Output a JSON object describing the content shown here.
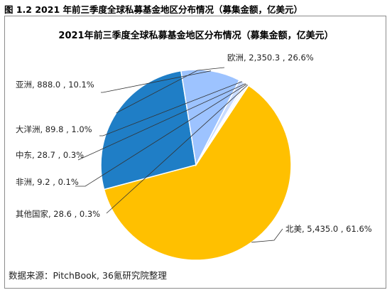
{
  "figure_caption": "图 1.2 2021 年前三季度全球私募基金地区分布情况（募集金额，亿美元）",
  "source": "数据来源：PitchBook, 36氪研究院整理",
  "colors": {
    "north_america": "#FFC000",
    "europe": "#1F7EC6",
    "asia": "#9DC3FF",
    "oceania": "#C9DCFF",
    "middle_east": "#DCE8FF",
    "africa": "#E9F0FF",
    "other": "#F3F7FF"
  },
  "chart_data": {
    "type": "pie",
    "title": "2021年前三季度全球私募基金地区分布情况（募集金额，亿美元）",
    "slices": [
      {
        "name": "北美",
        "value": 5435.0,
        "percent": 61.6,
        "label": "北美, 5,435.0 , 61.6%"
      },
      {
        "name": "欧洲",
        "value": 2350.3,
        "percent": 26.6,
        "label": "欧洲, 2,350.3 , 26.6%"
      },
      {
        "name": "亚洲",
        "value": 888.0,
        "percent": 10.1,
        "label": "亚洲, 888.0 , 10.1%"
      },
      {
        "name": "大洋洲",
        "value": 89.8,
        "percent": 1.0,
        "label": "大洋洲, 89.8 , 1.0%"
      },
      {
        "name": "中东",
        "value": 28.7,
        "percent": 0.3,
        "label": "中东, 28.7 , 0.3%"
      },
      {
        "name": "非洲",
        "value": 9.2,
        "percent": 0.1,
        "label": "非洲, 9.2 , 0.1%"
      },
      {
        "name": "其他国家",
        "value": 28.6,
        "percent": 0.3,
        "label": "其他国家, 28.6 , 0.3%"
      }
    ]
  }
}
